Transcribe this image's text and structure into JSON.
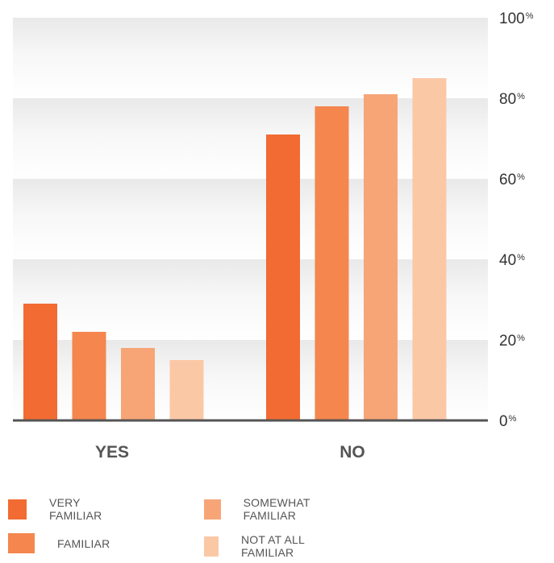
{
  "chart_data": {
    "type": "bar",
    "categories": [
      "YES",
      "NO"
    ],
    "series": [
      {
        "name": "VERY FAMILIAR",
        "values": [
          29,
          71
        ],
        "color": "#F26B33"
      },
      {
        "name": "FAMILIAR",
        "values": [
          22,
          78
        ],
        "color": "#F4864E"
      },
      {
        "name": "SOMEWHAT FAMILIAR",
        "values": [
          18,
          81
        ],
        "color": "#F7A577"
      },
      {
        "name": "NOT AT ALL FAMILIAR",
        "values": [
          15,
          85
        ],
        "color": "#FBC8A6"
      }
    ],
    "ylim": [
      0,
      100
    ],
    "yticks": [
      {
        "value": 0,
        "label": "0",
        "suffix": "%"
      },
      {
        "value": 20,
        "label": "20",
        "suffix": "%"
      },
      {
        "value": 40,
        "label": "40",
        "suffix": "%"
      },
      {
        "value": 60,
        "label": "60",
        "suffix": "%"
      },
      {
        "value": 80,
        "label": "80",
        "suffix": "%"
      },
      {
        "value": 100,
        "label": "100",
        "suffix": "%"
      }
    ],
    "axis_position": "right",
    "legend_placement": "bottom",
    "grid": true
  }
}
